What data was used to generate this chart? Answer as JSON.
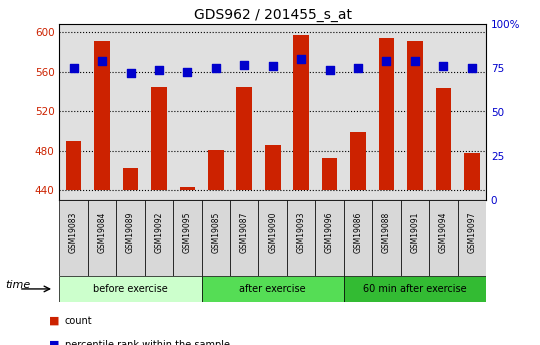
{
  "title": "GDS962 / 201455_s_at",
  "samples": [
    "GSM19083",
    "GSM19084",
    "GSM19089",
    "GSM19092",
    "GSM19095",
    "GSM19085",
    "GSM19087",
    "GSM19090",
    "GSM19093",
    "GSM19096",
    "GSM19086",
    "GSM19088",
    "GSM19091",
    "GSM19094",
    "GSM19097"
  ],
  "counts": [
    490,
    591,
    462,
    544,
    443,
    481,
    544,
    486,
    597,
    473,
    499,
    594,
    591,
    543,
    478
  ],
  "percentiles": [
    75,
    79,
    72,
    74,
    73,
    75,
    77,
    76,
    80,
    74,
    75,
    79,
    79,
    76,
    75
  ],
  "groups": [
    {
      "label": "before exercise",
      "start": 0,
      "end": 5,
      "color": "#d4f5c8"
    },
    {
      "label": "after exercise",
      "start": 5,
      "end": 10,
      "color": "#66dd66"
    },
    {
      "label": "60 min after exercise",
      "start": 10,
      "end": 15,
      "color": "#44cc44"
    }
  ],
  "ylim_left": [
    430,
    608
  ],
  "ylim_right": [
    0,
    100
  ],
  "yticks_left": [
    440,
    480,
    520,
    560,
    600
  ],
  "yticks_right": [
    0,
    25,
    50,
    75,
    100
  ],
  "bar_color": "#cc2200",
  "dot_color": "#0000cc",
  "bar_bottom": 440,
  "bar_width": 0.55,
  "dot_size": 40,
  "background_color": "#e0e0e0",
  "legend_count_label": "count",
  "legend_pct_label": "percentile rank within the sample",
  "time_label": "time",
  "left_axis_color": "#cc2200",
  "right_axis_color": "#0000cc",
  "label_bg_color": "#cccccc",
  "group1_color": "#ccffcc",
  "group2_color": "#55dd55",
  "group3_color": "#33bb33"
}
